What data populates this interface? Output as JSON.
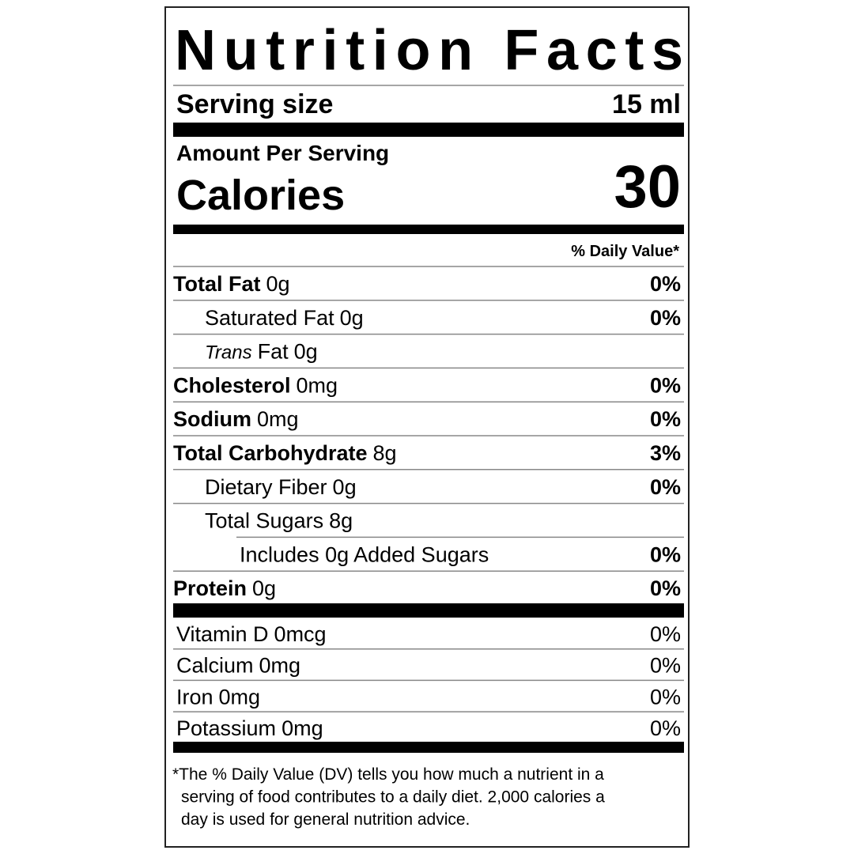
{
  "label": {
    "title": "Nutrition Facts",
    "serving_label": "Serving size",
    "serving_value": "15 ml",
    "amount_per_serving": "Amount Per Serving",
    "calories_label": "Calories",
    "calories_value": "30",
    "daily_value_header": "% Daily Value*",
    "nutrients": [
      {
        "name": "Total Fat",
        "amount": "0g",
        "dv": "0%",
        "sub": [
          {
            "name": "Saturated Fat",
            "amount": "0g",
            "dv": "0%"
          },
          {
            "prefix": "Trans",
            "name": "Fat",
            "amount": "0g"
          }
        ]
      },
      {
        "name": "Cholesterol",
        "amount": "0mg",
        "dv": "0%"
      },
      {
        "name": "Sodium",
        "amount": "0mg",
        "dv": "0%"
      },
      {
        "name": "Total Carbohydrate",
        "amount": "8g",
        "dv": "3%",
        "sub": [
          {
            "name": "Dietary Fiber",
            "amount": "0g",
            "dv": "0%"
          },
          {
            "name": "Total Sugars",
            "amount": "8g",
            "sub": [
              {
                "name": "Includes 0g Added Sugars",
                "dv": "0%"
              }
            ]
          }
        ]
      },
      {
        "name": "Protein",
        "amount": "0g",
        "dv": "0%"
      }
    ],
    "vitamins": [
      {
        "name": "Vitamin D",
        "amount": "0mcg",
        "dv": "0%"
      },
      {
        "name": "Calcium",
        "amount": "0mg",
        "dv": "0%"
      },
      {
        "name": "Iron",
        "amount": "0mg",
        "dv": "0%"
      },
      {
        "name": "Potassium",
        "amount": "0mg",
        "dv": "0%"
      }
    ],
    "footnote": [
      "*The % Daily Value (DV) tells you how much a nutrient in a",
      "serving of food contributes to a daily diet. 2,000 calories a",
      "day is used for general nutrition advice."
    ]
  }
}
